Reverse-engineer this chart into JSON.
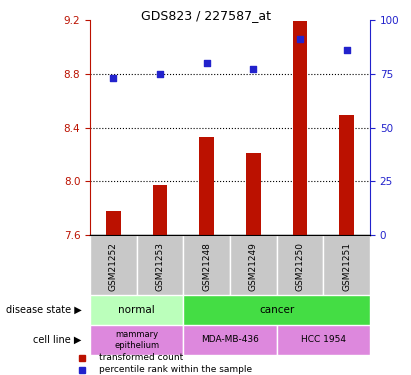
{
  "title": "GDS823 / 227587_at",
  "samples": [
    "GSM21252",
    "GSM21253",
    "GSM21248",
    "GSM21249",
    "GSM21250",
    "GSM21251"
  ],
  "bar_values": [
    7.78,
    7.97,
    8.33,
    8.21,
    9.19,
    8.49
  ],
  "dot_values": [
    73,
    75,
    80,
    77,
    91,
    86
  ],
  "ylim_left": [
    7.6,
    9.2
  ],
  "ylim_right": [
    0,
    100
  ],
  "yticks_left": [
    7.6,
    8.0,
    8.4,
    8.8,
    9.2
  ],
  "yticks_right": [
    0,
    25,
    50,
    75,
    100
  ],
  "bar_color": "#bb1100",
  "dot_color": "#2222cc",
  "bar_baseline": 7.6,
  "disease_color_normal": "#bbffbb",
  "disease_color_cancer": "#44dd44",
  "cell_line_color": "#dd88dd",
  "sample_bg_color": "#c8c8c8",
  "dotted_lines": [
    8.0,
    8.4,
    8.8
  ],
  "legend_items": [
    {
      "label": "transformed count",
      "color": "#bb1100"
    },
    {
      "label": "percentile rank within the sample",
      "color": "#2222cc"
    }
  ],
  "left_label_disease": "disease state",
  "left_label_cellline": "cell line",
  "normal_label": "normal",
  "cancer_label": "cancer",
  "cell_labels": [
    "mammary\nepithelium",
    "MDA-MB-436",
    "HCC 1954"
  ]
}
